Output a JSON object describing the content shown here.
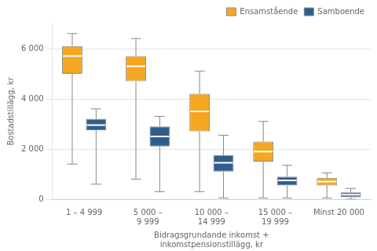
{
  "chart_data": {
    "type": "box",
    "xlabel": "Bidragsgrundande inkomst +\ninkomstpensionstillägg, kr",
    "ylabel": "Bostadstillägg, kr",
    "categories": [
      "1 – 4 999",
      "5 000 –\n9 999",
      "10 000 –\n14 999",
      "15 000 –\n19 999",
      "Minst 20 000"
    ],
    "series": [
      {
        "name": "Ensamstående",
        "color": "#F5A623",
        "values": [
          {
            "whislo": 1400,
            "q1": 5000,
            "med": 5700,
            "q3": 6100,
            "whishi": 6600
          },
          {
            "whislo": 800,
            "q1": 4700,
            "med": 5300,
            "q3": 5700,
            "whishi": 6400
          },
          {
            "whislo": 300,
            "q1": 2700,
            "med": 3500,
            "q3": 4200,
            "whishi": 5100
          },
          {
            "whislo": 50,
            "q1": 1500,
            "med": 1900,
            "q3": 2300,
            "whishi": 3100
          },
          {
            "whislo": 50,
            "q1": 550,
            "med": 700,
            "q3": 850,
            "whishi": 1050
          }
        ]
      },
      {
        "name": "Samboende",
        "color": "#2E5E8E",
        "values": [
          {
            "whislo": 600,
            "q1": 2750,
            "med": 2950,
            "q3": 3200,
            "whishi": 3600
          },
          {
            "whislo": 300,
            "q1": 2100,
            "med": 2500,
            "q3": 2900,
            "whishi": 3300
          },
          {
            "whislo": 50,
            "q1": 1100,
            "med": 1450,
            "q3": 1750,
            "whishi": 2550
          },
          {
            "whislo": 50,
            "q1": 550,
            "med": 750,
            "q3": 900,
            "whishi": 1350
          },
          {
            "whislo": 0,
            "q1": 80,
            "med": 180,
            "q3": 270,
            "whishi": 430
          }
        ]
      }
    ],
    "ylim": [
      0,
      7000
    ],
    "yticks": [
      0,
      {
        "value": 2000,
        "label": "2 000"
      },
      {
        "value": 4000,
        "label": "4 000"
      },
      {
        "value": 6000,
        "label": "6 000"
      }
    ],
    "grid": true,
    "legend": "upper right"
  }
}
